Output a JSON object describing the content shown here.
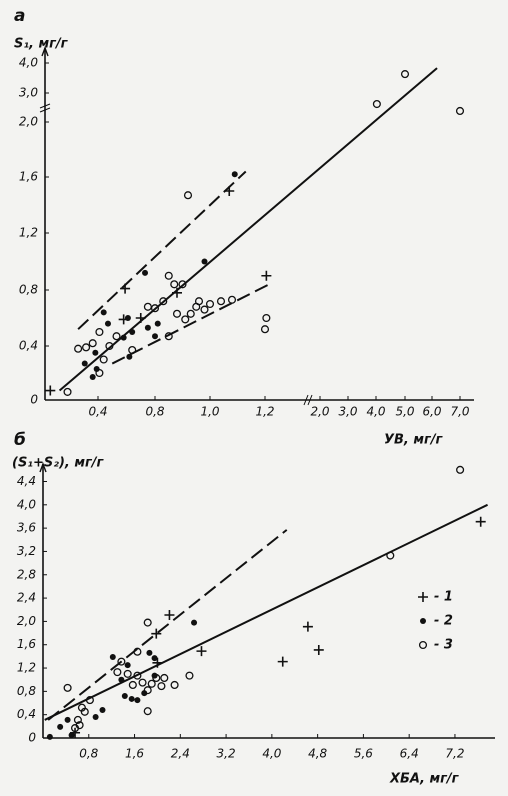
{
  "chart_data": [
    {
      "type": "scatter",
      "panel_label": "а",
      "y_label": "S₁, мг/г",
      "x_label": "УВ, мг/г",
      "axis_break": true,
      "xlim": [
        0,
        7.5
      ],
      "ylim": [
        0,
        4.5
      ],
      "xticks": [
        {
          "value": 0.4,
          "label": "0,4"
        },
        {
          "value": 0.8,
          "label": "0,8"
        },
        {
          "value": 1.0,
          "label": "1,0"
        },
        {
          "value": 1.2,
          "label": "1,2"
        },
        {
          "value": 2.0,
          "label": "2,0"
        },
        {
          "value": 3.0,
          "label": "3,0"
        },
        {
          "value": 4.0,
          "label": "4,0"
        },
        {
          "value": 5.0,
          "label": "5,0"
        },
        {
          "value": 6.0,
          "label": "6,0"
        },
        {
          "value": 7.0,
          "label": "7,0"
        }
      ],
      "yticks": [
        0,
        {
          "value": 0.4,
          "label": "0,4"
        },
        {
          "value": 0.8,
          "label": "0,8"
        },
        {
          "value": 1.2,
          "label": "1,2"
        },
        {
          "value": 1.6,
          "label": "1,6"
        },
        {
          "value": 2.0,
          "label": "2,0"
        },
        {
          "value": 3.0,
          "label": "3,0"
        },
        {
          "value": 4.0,
          "label": "4,0"
        }
      ],
      "series": [
        {
          "marker": "plus",
          "color": "#111111",
          "x": [
            0.04,
            0.59,
            0.58,
            0.7,
            0.88,
            1.07,
            1.22
          ],
          "values": [
            0.07,
            0.81,
            0.59,
            0.6,
            0.78,
            1.5,
            0.9
          ]
        },
        {
          "marker": "dot",
          "color": "#111111",
          "x": [
            0.36,
            0.39,
            0.3,
            0.38,
            0.47,
            0.44,
            0.58,
            0.64,
            0.61,
            0.62,
            0.75,
            0.81,
            0.8,
            0.73,
            0.98,
            1.09
          ],
          "values": [
            0.17,
            0.23,
            0.27,
            0.35,
            0.56,
            0.64,
            0.46,
            0.5,
            0.6,
            0.32,
            0.53,
            0.56,
            0.47,
            0.92,
            1.0,
            1.62
          ]
        },
        {
          "marker": "circle",
          "color": "#111111",
          "x": [
            0.17,
            0.25,
            0.31,
            0.36,
            0.41,
            0.44,
            0.48,
            0.41,
            0.53,
            0.64,
            0.75,
            0.8,
            0.83,
            0.85,
            0.87,
            0.9,
            0.88,
            0.91,
            0.93,
            0.95,
            0.96,
            0.98,
            1.0,
            1.04,
            1.08,
            1.2,
            1.22,
            0.92,
            0.85,
            4.03,
            5.0,
            7.0
          ],
          "values": [
            0.06,
            0.38,
            0.39,
            0.42,
            0.2,
            0.3,
            0.4,
            0.5,
            0.47,
            0.37,
            0.68,
            0.67,
            0.72,
            0.9,
            0.84,
            0.84,
            0.63,
            0.59,
            0.63,
            0.68,
            0.72,
            0.66,
            0.7,
            0.72,
            0.73,
            0.52,
            0.6,
            1.47,
            0.47,
            2.62,
            3.63,
            2.38
          ]
        }
      ],
      "fit_lines": [
        {
          "style": "solid",
          "x": [
            0.11,
            6.18
          ],
          "values": [
            0.07,
            3.83
          ]
        },
        {
          "style": "dashed",
          "x": [
            0.25,
            1.13
          ],
          "values": [
            0.52,
            1.64
          ]
        },
        {
          "style": "dashed",
          "x": [
            0.5,
            1.26
          ],
          "values": [
            0.27,
            0.84
          ]
        }
      ]
    },
    {
      "type": "scatter",
      "panel_label": "б",
      "y_label": "(S₁+S₂), мг/г",
      "x_label": "ХБА, мг/г",
      "axis_break": false,
      "xlim": [
        0,
        7.9
      ],
      "ylim": [
        0,
        4.7
      ],
      "xticks": [
        {
          "value": 0.8,
          "label": "0,8"
        },
        {
          "value": 1.6,
          "label": "1,6"
        },
        {
          "value": 2.4,
          "label": "2,4"
        },
        {
          "value": 3.2,
          "label": "3,2"
        },
        {
          "value": 4.0,
          "label": "4,0"
        },
        {
          "value": 4.8,
          "label": "4,8"
        },
        {
          "value": 5.6,
          "label": "5,6"
        },
        {
          "value": 6.4,
          "label": "6,4"
        },
        {
          "value": 7.2,
          "label": "7,2"
        }
      ],
      "yticks": [
        0,
        {
          "value": 0.4,
          "label": "0,4"
        },
        {
          "value": 0.8,
          "label": "0,8"
        },
        {
          "value": 1.2,
          "label": "1,2"
        },
        {
          "value": 1.6,
          "label": "1,6"
        },
        {
          "value": 2.0,
          "label": "2,0"
        },
        {
          "value": 2.4,
          "label": "2,4"
        },
        {
          "value": 2.8,
          "label": "2,8"
        },
        {
          "value": 3.2,
          "label": "3,2"
        },
        {
          "value": 3.6,
          "label": "3,6"
        },
        {
          "value": 4.0,
          "label": "4,0"
        },
        {
          "value": 4.4,
          "label": "4,4"
        }
      ],
      "legend": "right",
      "series": [
        {
          "name": "- 1",
          "marker": "plus",
          "color": "#111111",
          "x": [
            0.56,
            2.0,
            1.98,
            2.21,
            2.77,
            4.19,
            4.63,
            4.82,
            7.65
          ],
          "values": [
            0.09,
            1.29,
            1.79,
            2.11,
            1.49,
            1.31,
            1.91,
            1.51,
            3.71
          ]
        },
        {
          "name": "- 2",
          "marker": "dot",
          "color": "#111111",
          "x": [
            0.12,
            0.3,
            0.43,
            0.5,
            0.92,
            1.04,
            1.22,
            1.37,
            1.43,
            1.55,
            1.65,
            1.77,
            1.48,
            1.86,
            1.95,
            2.64,
            1.95
          ],
          "values": [
            0.02,
            0.19,
            0.31,
            0.05,
            0.36,
            0.48,
            1.39,
            1.0,
            0.72,
            0.67,
            0.65,
            0.77,
            1.25,
            1.46,
            1.37,
            1.98,
            1.07
          ]
        },
        {
          "name": "- 3",
          "marker": "circle",
          "color": "#111111",
          "x": [
            0.43,
            0.64,
            0.56,
            0.61,
            0.73,
            0.82,
            0.68,
            1.3,
            1.37,
            1.48,
            1.57,
            1.65,
            1.74,
            1.83,
            1.83,
            1.9,
            1.98,
            2.07,
            2.12,
            2.3,
            2.56,
            1.83,
            1.65,
            6.07,
            7.29
          ],
          "values": [
            0.86,
            0.22,
            0.17,
            0.31,
            0.45,
            0.65,
            0.52,
            1.13,
            1.31,
            1.1,
            0.91,
            1.07,
            0.95,
            0.82,
            0.46,
            0.93,
            1.03,
            0.89,
            1.03,
            0.91,
            1.07,
            1.98,
            1.48,
            3.13,
            4.6
          ]
        }
      ],
      "fit_lines": [
        {
          "style": "solid",
          "x": [
            0.03,
            7.77
          ],
          "values": [
            0.31,
            4.0
          ]
        },
        {
          "style": "dashed",
          "x": [
            0.09,
            4.26
          ],
          "values": [
            0.31,
            3.57
          ]
        }
      ]
    }
  ]
}
